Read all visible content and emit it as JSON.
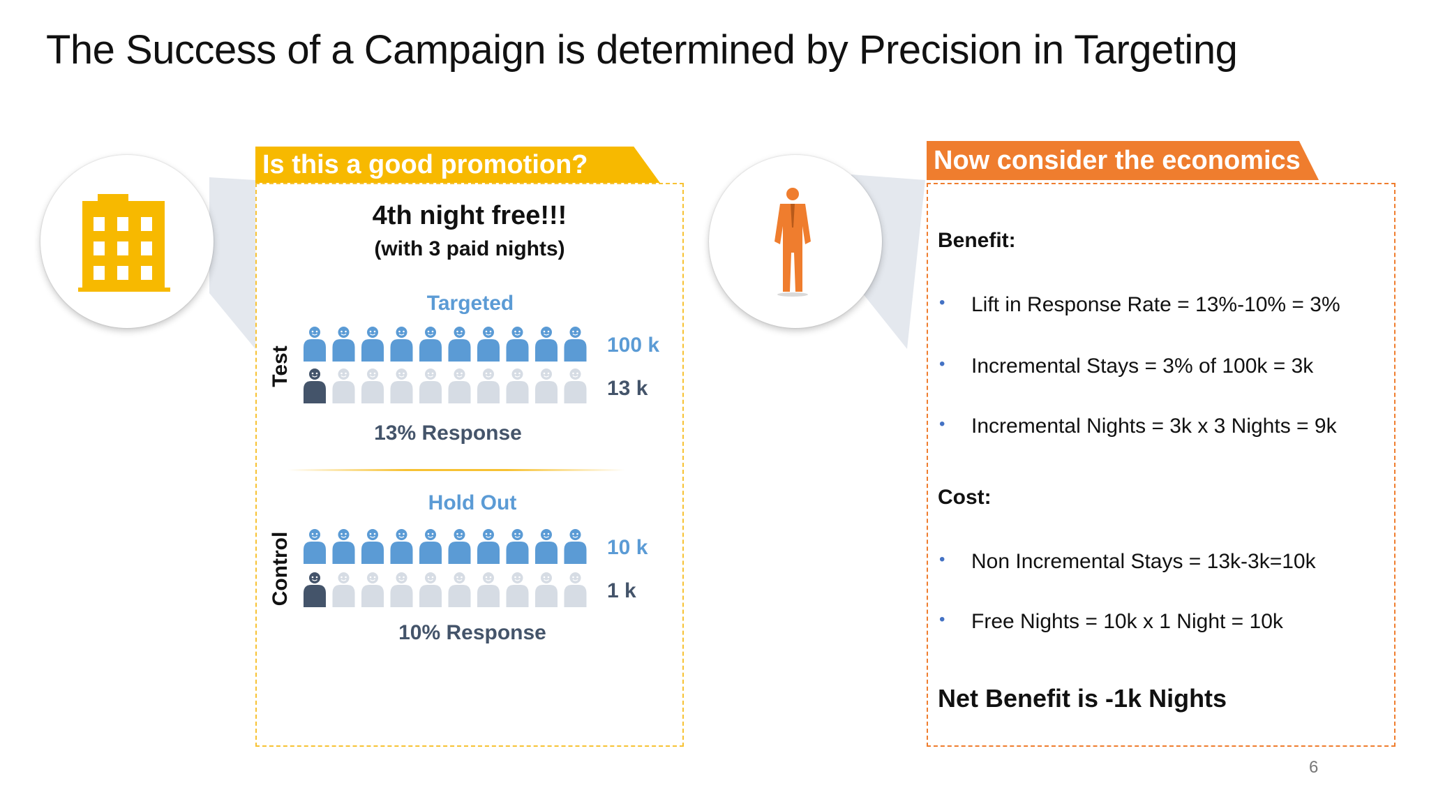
{
  "slide": {
    "title": "The Success of a Campaign is determined by Precision in Targeting",
    "page_number": "6"
  },
  "promotion": {
    "banner": "Is this a good promotion?",
    "offer_main": "4th night free!!!",
    "offer_sub": "(with 3 paid nights)",
    "test": {
      "side_label": "Test",
      "group_label": "Targeted",
      "targeted_count": "100 k",
      "responders_count": "13 k",
      "response_text": "13% Response",
      "responder_fraction": 0.13
    },
    "control": {
      "side_label": "Control",
      "group_label": "Hold Out",
      "targeted_count": "10 k",
      "responders_count": "1 k",
      "response_text": "10% Response",
      "responder_fraction": 0.1
    }
  },
  "economics": {
    "banner": "Now consider the economics",
    "benefit_heading": "Benefit:",
    "benefit_items": [
      "Lift in Response Rate = 13%-10% = 3%",
      "Incremental Stays = 3% of 100k = 3k",
      "Incremental Nights = 3k x 3 Nights = 9k"
    ],
    "cost_heading": "Cost:",
    "cost_items": [
      "Non Incremental Stays = 13k-3k=10k",
      "Free Nights = 10k x 1 Night = 10k"
    ],
    "net_benefit": "Net Benefit is  -1k Nights"
  },
  "icons": {
    "left": "hotel-building-icon",
    "right": "businessman-icon"
  },
  "colors": {
    "yellow": "#f7b900",
    "orange": "#ef7d2e",
    "blue": "#5b9bd5",
    "dark": "#44546a",
    "light_gray": "#d6dce4",
    "bullet_blue": "#4472c4"
  }
}
